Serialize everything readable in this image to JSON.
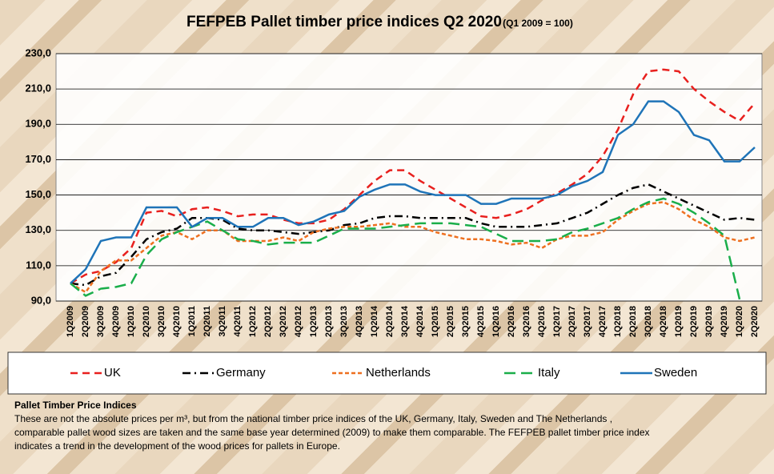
{
  "chart_data": {
    "type": "line",
    "title": "FEFPEB Pallet timber price indices Q2 2020",
    "subtitle": "(Q1 2009 = 100)",
    "categories": [
      "1Q2009",
      "2Q2009",
      "3Q2009",
      "4Q2009",
      "1Q2010",
      "2Q2010",
      "3Q2010",
      "4Q2010",
      "1Q2011",
      "2Q2011",
      "3Q2011",
      "4Q2011",
      "1Q2012",
      "2Q2012",
      "3Q2012",
      "4Q2012",
      "1Q2013",
      "2Q2013",
      "3Q2013",
      "4Q2013",
      "1Q2014",
      "2Q2014",
      "3Q2014",
      "4Q2014",
      "1Q2015",
      "2Q2015",
      "3Q2015",
      "4Q2015",
      "1Q2016",
      "2Q2016",
      "3Q2016",
      "4Q2016",
      "1Q2017",
      "2Q2017",
      "3Q2017",
      "4Q2017",
      "1Q2018",
      "2Q2018",
      "3Q2018",
      "4Q2018",
      "1Q2019",
      "2Q2019",
      "3Q2019",
      "4Q2019",
      "1Q2020",
      "2Q2020"
    ],
    "ylim": [
      90,
      230
    ],
    "yticks": [
      {
        "value": 90,
        "label": "90,0"
      },
      {
        "value": 110,
        "label": "110,0"
      },
      {
        "value": 130,
        "label": "130,0"
      },
      {
        "value": 150,
        "label": "150,0"
      },
      {
        "value": 170,
        "label": "170,0"
      },
      {
        "value": 190,
        "label": "190,0"
      },
      {
        "value": 210,
        "label": "210,0"
      },
      {
        "value": 230,
        "label": "230,0"
      }
    ],
    "grid": true,
    "series": [
      {
        "name": "UK",
        "color": "#e8201e",
        "dash": "9,6",
        "values": [
          100,
          105,
          107,
          112,
          120,
          140,
          141,
          138,
          142,
          143,
          141,
          138,
          139,
          139,
          136,
          134,
          134,
          136,
          142,
          150,
          158,
          164,
          164,
          158,
          153,
          148,
          143,
          138,
          137,
          139,
          142,
          147,
          151,
          156,
          162,
          172,
          187,
          207,
          220,
          221,
          220,
          210,
          203,
          197,
          192,
          202
        ]
      },
      {
        "name": "Germany",
        "color": "#000000",
        "dash": "10,5,2,5",
        "values": [
          100,
          99,
          104,
          106,
          115,
          125,
          129,
          131,
          137,
          137,
          136,
          131,
          130,
          130,
          129,
          128,
          129,
          130,
          133,
          134,
          137,
          138,
          138,
          137,
          137,
          137,
          137,
          134,
          132,
          132,
          132,
          133,
          134,
          137,
          140,
          145,
          150,
          154,
          156,
          152,
          148,
          144,
          140,
          136,
          137,
          136
        ]
      },
      {
        "name": "Netherlands",
        "color": "#ee7020",
        "dash": "5,3",
        "values": [
          100,
          95,
          107,
          113,
          113,
          120,
          127,
          129,
          125,
          130,
          130,
          124,
          124,
          124,
          126,
          124,
          129,
          131,
          132,
          132,
          133,
          134,
          132,
          132,
          129,
          127,
          125,
          125,
          124,
          122,
          123,
          120,
          125,
          127,
          127,
          129,
          136,
          141,
          145,
          146,
          142,
          136,
          132,
          126,
          124,
          126
        ]
      },
      {
        "name": "Italy",
        "color": "#1aae4a",
        "dash": "14,7",
        "values": [
          100,
          93,
          97,
          98,
          100,
          116,
          125,
          129,
          132,
          135,
          130,
          125,
          124,
          122,
          123,
          123,
          123,
          127,
          131,
          131,
          131,
          132,
          133,
          134,
          134,
          134,
          133,
          132,
          128,
          124,
          124,
          124,
          125,
          129,
          131,
          134,
          137,
          142,
          146,
          148,
          145,
          140,
          134,
          127,
          91,
          null
        ]
      },
      {
        "name": "Sweden",
        "color": "#1f74b8",
        "dash": "",
        "values": [
          100,
          108,
          124,
          126,
          126,
          143,
          143,
          143,
          132,
          137,
          137,
          132,
          132,
          137,
          137,
          133,
          135,
          139,
          141,
          149,
          153,
          156,
          156,
          152,
          150,
          150,
          150,
          145,
          145,
          148,
          148,
          148,
          150,
          155,
          158,
          163,
          184,
          190,
          203,
          203,
          197,
          184,
          181,
          169,
          169,
          177
        ]
      }
    ]
  },
  "note": {
    "heading": "Pallet Timber Price Indices",
    "lines": [
      "These are not the absolute prices per m³, but from the national timber price indices of the UK, Germany, Italy, Sweden and The Netherlands ,",
      "comparable pallet  wood sizes are taken and the same base year determined (2009) to make them comparable. The FEFPEB pallet timber price index",
      "indicates a trend in the development of the wood prices for pallets in Europe."
    ]
  }
}
